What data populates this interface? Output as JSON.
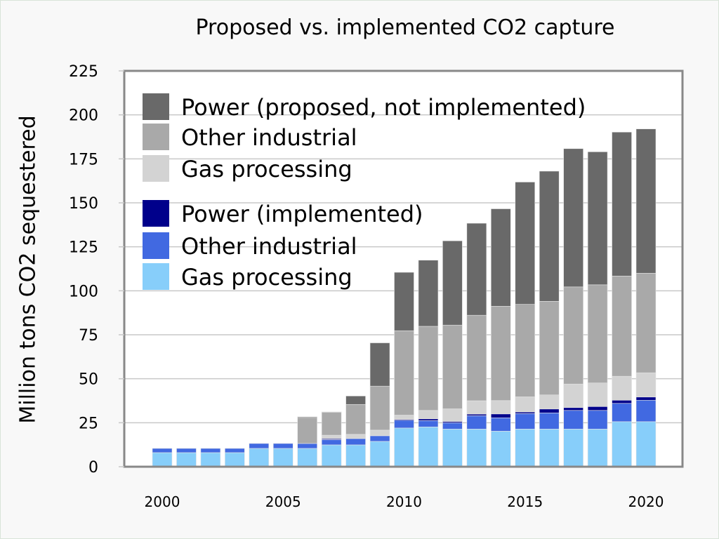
{
  "chart_data": {
    "type": "bar",
    "stacked": true,
    "title": "Proposed vs. implemented CO2 capture",
    "xlabel": "",
    "ylabel": "Million tons CO2 sequestered",
    "ylim": [
      0,
      225
    ],
    "yticks": [
      0,
      25,
      50,
      75,
      100,
      125,
      150,
      175,
      200,
      225
    ],
    "xticks": [
      2000,
      2005,
      2010,
      2015,
      2020
    ],
    "grid": true,
    "legend_position": "top-left",
    "categories": [
      2000,
      2001,
      2002,
      2003,
      2004,
      2005,
      2006,
      2007,
      2008,
      2009,
      2010,
      2011,
      2012,
      2013,
      2014,
      2015,
      2016,
      2017,
      2018,
      2019,
      2020
    ],
    "series": [
      {
        "name": "Gas processing",
        "group": "implemented",
        "color": "#87cefa",
        "values": [
          8,
          8,
          8,
          8,
          10.4,
          10.4,
          10.4,
          12.4,
          12.4,
          14.4,
          22,
          22.6,
          21.4,
          21.4,
          20.2,
          21.4,
          21.4,
          21.4,
          21.4,
          25.6,
          25.6
        ]
      },
      {
        "name": "Other industrial",
        "group": "implemented",
        "color": "#4169e1",
        "values": [
          2.4,
          2.4,
          2.4,
          2.4,
          2.8,
          2.8,
          2.8,
          3,
          3.6,
          3.2,
          4.4,
          3.6,
          3.6,
          7.6,
          7.6,
          8.8,
          9.2,
          10.6,
          10.6,
          10.4,
          12.2
        ]
      },
      {
        "name": "Power (implemented)",
        "group": "implemented",
        "color": "#00008b",
        "values": [
          0,
          0,
          0,
          0,
          0,
          0,
          0,
          0.5,
          0,
          0,
          0.5,
          1,
          0.7,
          0.9,
          2.2,
          0.9,
          2.2,
          1.6,
          2.2,
          1.8,
          1.8
        ]
      },
      {
        "name": "Gas processing",
        "group": "proposed",
        "color": "#d3d3d3",
        "values": [
          0,
          0,
          0,
          0,
          0,
          0,
          0,
          2,
          2.4,
          3.2,
          2.4,
          4.8,
          7.2,
          7.6,
          7.6,
          8.6,
          8,
          13.4,
          13.4,
          13.6,
          13.8
        ]
      },
      {
        "name": "Other industrial",
        "group": "proposed",
        "color": "#a9a9a9",
        "values": [
          0,
          0,
          0,
          0,
          0,
          0,
          14.8,
          13,
          17,
          25,
          48,
          47.8,
          47.6,
          48.6,
          53.6,
          52.6,
          53.2,
          55.2,
          55.8,
          57,
          56.6
        ]
      },
      {
        "name": "Power (proposed, not implemented)",
        "group": "proposed",
        "color": "#696969",
        "values": [
          0,
          0,
          0,
          0,
          0,
          0,
          0.4,
          0.3,
          4.8,
          24.6,
          33.2,
          37.6,
          47.9,
          52.3,
          55.4,
          69.5,
          74,
          78.6,
          75.6,
          81.8,
          82
        ]
      }
    ],
    "legend": [
      {
        "label": "Power (proposed, not implemented)",
        "color": "#696969"
      },
      {
        "label": "Other industrial",
        "color": "#a9a9a9"
      },
      {
        "label": "Gas processing",
        "color": "#d3d3d3"
      },
      {
        "label": "Power (implemented)",
        "color": "#00008b"
      },
      {
        "label": "Other industrial",
        "color": "#4169e1"
      },
      {
        "label": "Gas processing",
        "color": "#87cefa"
      }
    ]
  }
}
